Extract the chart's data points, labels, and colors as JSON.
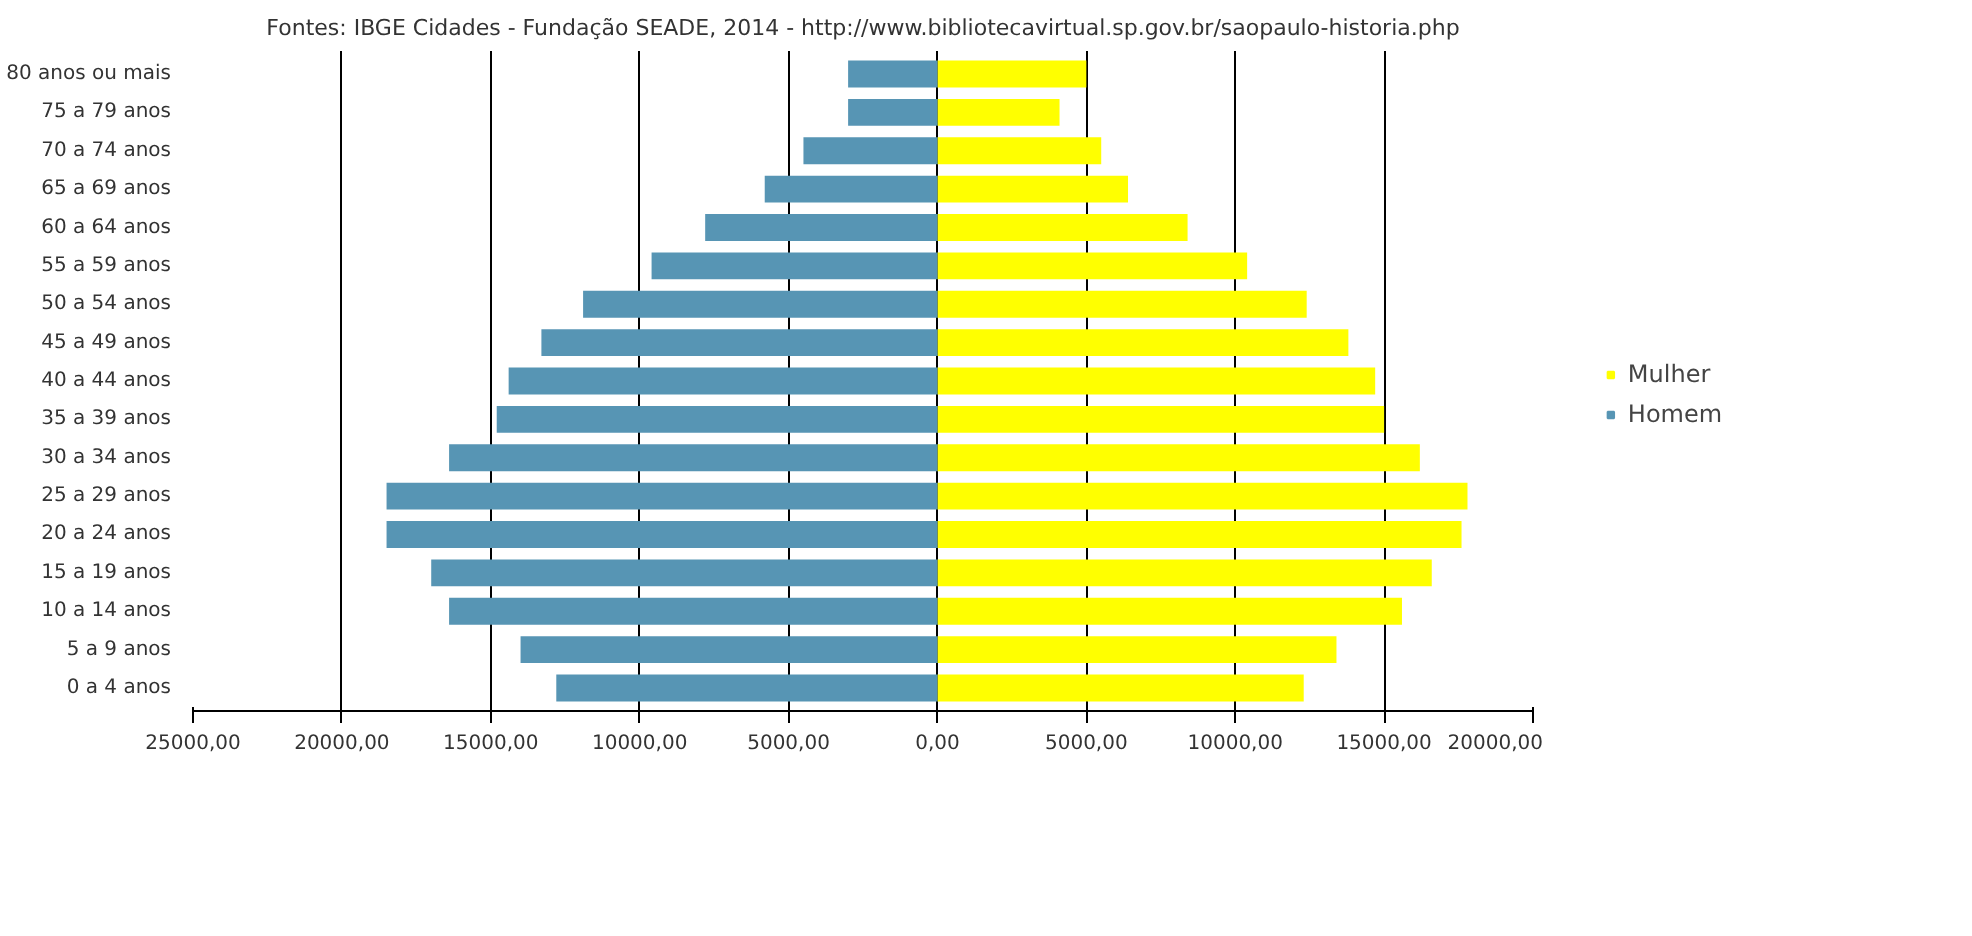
{
  "chart_data": {
    "type": "bar",
    "orientation": "horizontal",
    "annotations": [
      "Fontes: IBGE Cidades - Fundação SEADE, 2014 - http://www.bibliotecavirtual.sp.gov.br/saopaulo-historia.php"
    ],
    "categories": [
      "80 anos ou mais",
      "75 a 79 anos",
      "70 a 74 anos",
      "65 a 69 anos",
      "60 a 64 anos",
      "55 a 59 anos",
      "50 a 54 anos",
      "45 a 49 anos",
      "40 a 44 anos",
      "35 a 39 anos",
      "30 a 34 anos",
      "25 a 29 anos",
      "20 a 24 anos",
      "15 a 19 anos",
      "10 a 14 anos",
      "5 a 9 anos",
      "0 a 4 anos"
    ],
    "series": [
      {
        "name": "Mulher",
        "color": "#ffff00",
        "values": [
          5000,
          4100,
          5500,
          6400,
          8400,
          10400,
          12400,
          13800,
          14700,
          15000,
          16200,
          17800,
          17600,
          16600,
          15600,
          13400,
          12300
        ]
      },
      {
        "name": "Homem",
        "color": "#5795b4",
        "values": [
          -3000,
          -3000,
          -4500,
          -5800,
          -7800,
          -9600,
          -11900,
          -13300,
          -14400,
          -14800,
          -16400,
          -18500,
          -18500,
          -17000,
          -16400,
          -14000,
          -12800
        ]
      }
    ],
    "xlim": [
      -25000,
      20000
    ],
    "xticks": [
      {
        "value": -25000,
        "label": "25000,00"
      },
      {
        "value": -20000,
        "label": "20000,00"
      },
      {
        "value": -15000,
        "label": "15000,00"
      },
      {
        "value": -10000,
        "label": "10000,00"
      },
      {
        "value": -5000,
        "label": "5000,00"
      },
      {
        "value": 0,
        "label": "0,00"
      },
      {
        "value": 5000,
        "label": "5000,00"
      },
      {
        "value": 10000,
        "label": "10000,00"
      },
      {
        "value": 15000,
        "label": "15000,00"
      },
      {
        "value": 20000,
        "label": "20000,00"
      }
    ],
    "stacked": true,
    "grid": "x",
    "legend": "right"
  }
}
